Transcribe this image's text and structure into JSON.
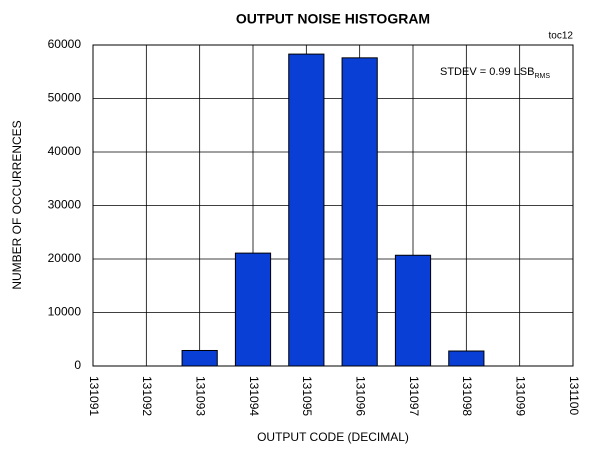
{
  "chart_data": {
    "type": "bar",
    "title": "OUTPUT NOISE HISTOGRAM",
    "corner_label": "toc12",
    "annotation": {
      "text": "STDEV = 0.99 LSB",
      "subscript": "RMS"
    },
    "xlabel": "OUTPUT CODE (DECIMAL)",
    "ylabel": "NUMBER OF OCCURRENCES",
    "x": [
      131093,
      131094,
      131095,
      131096,
      131097,
      131098
    ],
    "values": [
      2900,
      21100,
      58300,
      57600,
      20700,
      2800
    ],
    "color": "#0a3fd6",
    "xlim": [
      131091,
      131100
    ],
    "xticks": [
      131091,
      131092,
      131093,
      131094,
      131095,
      131096,
      131097,
      131098,
      131099,
      131100
    ],
    "ylim": [
      0,
      60000
    ],
    "yticks": [
      0,
      10000,
      20000,
      30000,
      40000,
      50000,
      60000
    ],
    "grid": true
  }
}
